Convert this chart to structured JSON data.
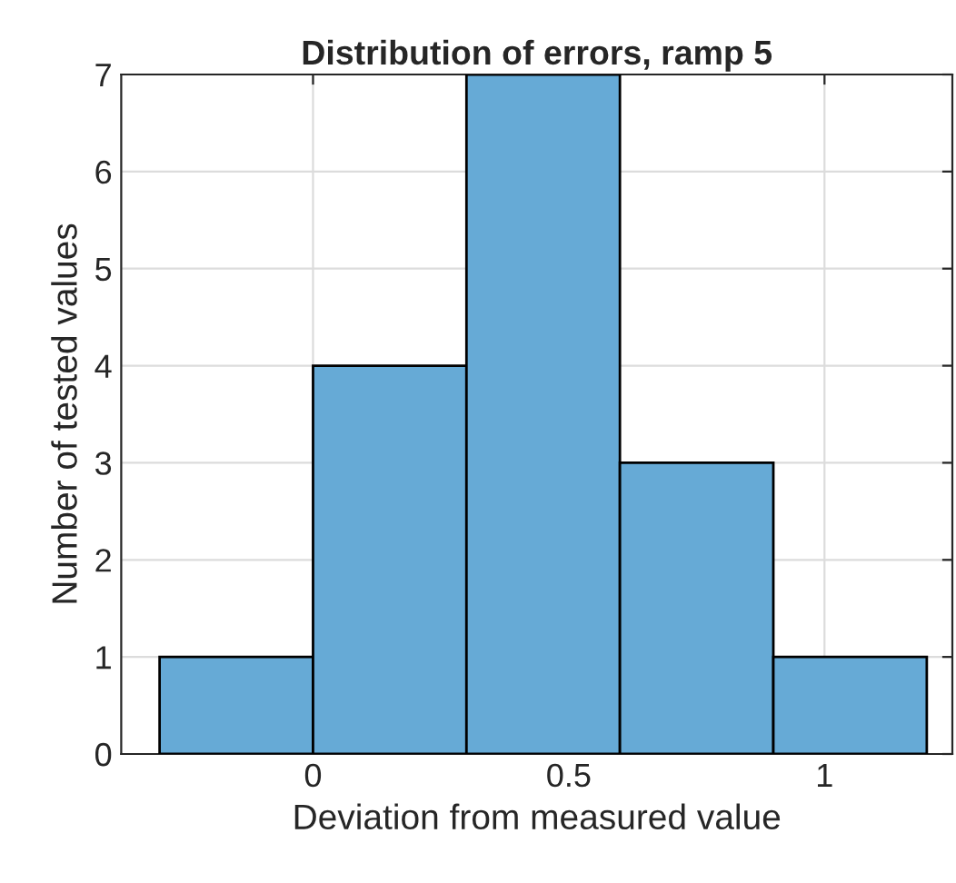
{
  "chart_data": {
    "type": "histogram",
    "title": "Distribution of errors, ramp 5",
    "xlabel": "Deviation from measured value",
    "ylabel": "Number of tested values",
    "bins": [
      -0.3,
      0,
      0.3,
      0.6,
      0.9,
      1.2
    ],
    "values": [
      1,
      4,
      7,
      3,
      1
    ],
    "color": "#66aad6",
    "xlim": [
      -0.375,
      1.25
    ],
    "xticks": [
      0,
      0.5,
      1
    ],
    "ylim": [
      0,
      7
    ],
    "yticks": [
      0,
      1,
      2,
      3,
      4,
      5,
      6,
      7
    ],
    "grid": true
  }
}
